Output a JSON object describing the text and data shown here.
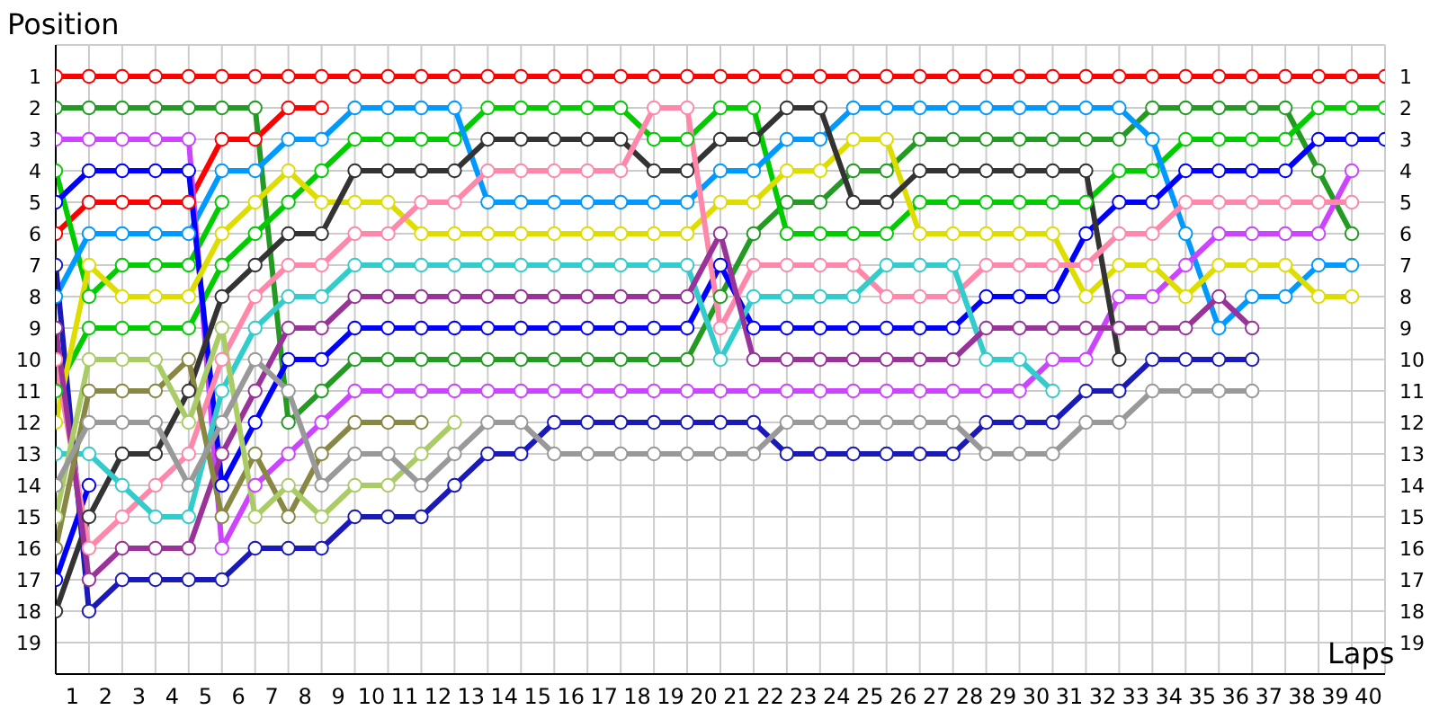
{
  "chart_data": {
    "type": "line",
    "xlabel": "Laps",
    "ylabel": "Position",
    "marker": "circle",
    "grid": true,
    "x": [
      0,
      1,
      2,
      3,
      4,
      5,
      6,
      7,
      8,
      9,
      10,
      11,
      12,
      13,
      14,
      15,
      16,
      17,
      18,
      19,
      20,
      21,
      22,
      23,
      24,
      25,
      26,
      27,
      28,
      29,
      30,
      31,
      32,
      33,
      34,
      35,
      36,
      37,
      38,
      39,
      40
    ],
    "xlim": [
      0,
      40
    ],
    "xticks": [
      {
        "value": 0.5,
        "label": "1"
      },
      {
        "value": 1.5,
        "label": "2"
      },
      {
        "value": 2.5,
        "label": "3"
      },
      {
        "value": 3.5,
        "label": "4"
      },
      {
        "value": 4.5,
        "label": "5"
      },
      {
        "value": 5.5,
        "label": "6"
      },
      {
        "value": 6.5,
        "label": "7"
      },
      {
        "value": 7.5,
        "label": "8"
      },
      {
        "value": 8.5,
        "label": "9"
      },
      {
        "value": 9.5,
        "label": "10"
      },
      {
        "value": 10.5,
        "label": "11"
      },
      {
        "value": 11.5,
        "label": "12"
      },
      {
        "value": 12.5,
        "label": "13"
      },
      {
        "value": 13.5,
        "label": "14"
      },
      {
        "value": 14.5,
        "label": "15"
      },
      {
        "value": 15.5,
        "label": "16"
      },
      {
        "value": 16.5,
        "label": "17"
      },
      {
        "value": 17.5,
        "label": "18"
      },
      {
        "value": 18.5,
        "label": "19"
      },
      {
        "value": 19.5,
        "label": "20"
      },
      {
        "value": 20.5,
        "label": "21"
      },
      {
        "value": 21.5,
        "label": "22"
      },
      {
        "value": 22.5,
        "label": "23"
      },
      {
        "value": 23.5,
        "label": "24"
      },
      {
        "value": 24.5,
        "label": "25"
      },
      {
        "value": 25.5,
        "label": "26"
      },
      {
        "value": 26.5,
        "label": "27"
      },
      {
        "value": 27.5,
        "label": "28"
      },
      {
        "value": 28.5,
        "label": "29"
      },
      {
        "value": 29.5,
        "label": "30"
      },
      {
        "value": 30.5,
        "label": "31"
      },
      {
        "value": 31.5,
        "label": "32"
      },
      {
        "value": 32.5,
        "label": "33"
      },
      {
        "value": 33.5,
        "label": "34"
      },
      {
        "value": 34.5,
        "label": "35"
      },
      {
        "value": 35.5,
        "label": "36"
      },
      {
        "value": 36.5,
        "label": "37"
      },
      {
        "value": 37.5,
        "label": "38"
      },
      {
        "value": 38.5,
        "label": "39"
      },
      {
        "value": 39.5,
        "label": "40"
      }
    ],
    "ylim": [
      20,
      0
    ],
    "yticks": [
      1,
      2,
      3,
      4,
      5,
      6,
      7,
      8,
      9,
      10,
      11,
      12,
      13,
      14,
      15,
      16,
      17,
      18,
      19
    ],
    "y2lim": [
      20,
      0
    ],
    "y2ticks": [
      1,
      2,
      3,
      4,
      5,
      6,
      7,
      8,
      9,
      10,
      11,
      12,
      13,
      14,
      15,
      16,
      17,
      18,
      19
    ],
    "series": [
      {
        "color": "#ff0000",
        "values": [
          1,
          1,
          1,
          1,
          1,
          1,
          1,
          1,
          1,
          1,
          1,
          1,
          1,
          1,
          1,
          1,
          1,
          1,
          1,
          1,
          1,
          1,
          1,
          1,
          1,
          1,
          1,
          1,
          1,
          1,
          1,
          1,
          1,
          1,
          1,
          1,
          1,
          1,
          1,
          1,
          1
        ]
      },
      {
        "color": "#ff0000",
        "values": [
          6,
          5,
          5,
          5,
          5,
          3,
          3,
          2,
          2,
          null,
          null,
          null,
          null,
          null,
          null,
          null,
          null,
          null,
          null,
          null,
          null,
          null,
          null,
          null,
          null,
          null,
          null,
          null,
          null,
          null,
          null,
          null,
          null,
          null,
          null,
          null,
          null,
          null,
          null,
          null,
          null
        ]
      },
      {
        "color": "#239b23",
        "values": [
          2,
          2,
          2,
          2,
          2,
          2,
          2,
          12,
          11,
          10,
          10,
          10,
          10,
          10,
          10,
          10,
          10,
          10,
          10,
          10,
          8,
          6,
          5,
          5,
          4,
          4,
          3,
          3,
          3,
          3,
          3,
          3,
          3,
          2,
          2,
          2,
          2,
          2,
          4,
          6,
          null
        ]
      },
      {
        "color": "#00cc00",
        "values": [
          4,
          8,
          7,
          7,
          7,
          5,
          null,
          null,
          null,
          null,
          null,
          null,
          null,
          null,
          null,
          null,
          null,
          null,
          null,
          null,
          null,
          null,
          null,
          null,
          null,
          null,
          null,
          null,
          null,
          null,
          null,
          null,
          null,
          null,
          null,
          null,
          null,
          null,
          null,
          null,
          null
        ]
      },
      {
        "color": "#00cc00",
        "values": [
          11,
          9,
          9,
          9,
          9,
          7,
          6,
          5,
          4,
          3,
          3,
          3,
          3,
          2,
          2,
          2,
          2,
          2,
          3,
          3,
          2,
          2,
          6,
          6,
          6,
          6,
          5,
          5,
          5,
          5,
          5,
          5,
          4,
          4,
          3,
          3,
          3,
          3,
          2,
          2,
          2
        ]
      },
      {
        "color": "#0099ff",
        "values": [
          8,
          6,
          6,
          6,
          6,
          4,
          4,
          3,
          3,
          2,
          2,
          2,
          2,
          5,
          5,
          5,
          5,
          5,
          5,
          5,
          4,
          4,
          3,
          3,
          2,
          2,
          2,
          2,
          2,
          2,
          2,
          2,
          2,
          3,
          6,
          9,
          8,
          8,
          7,
          7,
          null
        ]
      },
      {
        "color": "#cc44ff",
        "values": [
          3,
          3,
          3,
          3,
          3,
          16,
          14,
          13,
          12,
          11,
          11,
          11,
          11,
          11,
          11,
          11,
          11,
          11,
          11,
          11,
          11,
          11,
          11,
          11,
          11,
          11,
          11,
          11,
          11,
          11,
          10,
          10,
          8,
          8,
          7,
          6,
          6,
          6,
          6,
          4,
          null
        ]
      },
      {
        "color": "#0000ff",
        "values": [
          5,
          4,
          4,
          4,
          4,
          14,
          12,
          10,
          10,
          9,
          9,
          9,
          9,
          9,
          9,
          9,
          9,
          9,
          9,
          9,
          7,
          9,
          9,
          9,
          9,
          9,
          9,
          9,
          8,
          8,
          8,
          6,
          5,
          5,
          4,
          4,
          4,
          4,
          3,
          3,
          3
        ]
      },
      {
        "color": "#1a1ab8",
        "values": [
          7,
          18,
          17,
          17,
          17,
          17,
          16,
          16,
          16,
          15,
          15,
          15,
          14,
          13,
          13,
          12,
          12,
          12,
          12,
          12,
          12,
          12,
          13,
          13,
          13,
          13,
          13,
          13,
          12,
          12,
          12,
          11,
          11,
          10,
          10,
          10,
          10,
          null,
          null,
          null,
          null
        ]
      },
      {
        "color": "#0000ff",
        "values": [
          17,
          14,
          null,
          null,
          null,
          null,
          null,
          null,
          null,
          null,
          null,
          null,
          null,
          null,
          null,
          null,
          null,
          null,
          null,
          null,
          null,
          null,
          null,
          null,
          null,
          null,
          null,
          null,
          null,
          null,
          null,
          null,
          null,
          null,
          null,
          null,
          null,
          null,
          null,
          null,
          null
        ]
      },
      {
        "color": "#dddd00",
        "values": [
          12,
          7,
          8,
          8,
          8,
          6,
          5,
          4,
          5,
          5,
          5,
          6,
          6,
          6,
          6,
          6,
          6,
          6,
          6,
          6,
          5,
          5,
          4,
          4,
          3,
          3,
          6,
          6,
          6,
          6,
          6,
          8,
          7,
          7,
          8,
          7,
          7,
          7,
          8,
          8,
          null
        ]
      },
      {
        "color": "#333333",
        "values": [
          18,
          15,
          13,
          13,
          11,
          8,
          7,
          6,
          6,
          4,
          4,
          4,
          4,
          3,
          3,
          3,
          3,
          3,
          4,
          4,
          3,
          3,
          2,
          2,
          5,
          5,
          4,
          4,
          4,
          4,
          4,
          4,
          10,
          null,
          null,
          null,
          null,
          null,
          null,
          null,
          null
        ]
      },
      {
        "color": "#ff88aa",
        "values": [
          10,
          16,
          15,
          14,
          13,
          10,
          8,
          7,
          7,
          6,
          6,
          5,
          5,
          4,
          4,
          4,
          4,
          4,
          2,
          2,
          9,
          7,
          7,
          7,
          7,
          8,
          8,
          8,
          7,
          7,
          7,
          7,
          6,
          6,
          5,
          5,
          5,
          5,
          5,
          5,
          null
        ]
      },
      {
        "color": "#33cccc",
        "values": [
          13,
          13,
          14,
          15,
          15,
          11,
          9,
          8,
          8,
          7,
          7,
          7,
          7,
          7,
          7,
          7,
          7,
          7,
          7,
          7,
          10,
          8,
          8,
          8,
          8,
          7,
          7,
          7,
          10,
          10,
          11,
          null,
          null,
          null,
          null,
          null,
          null,
          null,
          null,
          null,
          null
        ]
      },
      {
        "color": "#993399",
        "values": [
          9,
          17,
          16,
          16,
          16,
          13,
          11,
          9,
          9,
          8,
          8,
          8,
          8,
          8,
          8,
          8,
          8,
          8,
          8,
          8,
          6,
          10,
          10,
          10,
          10,
          10,
          10,
          10,
          9,
          9,
          9,
          9,
          9,
          9,
          9,
          8,
          9,
          null,
          null,
          null,
          null
        ]
      },
      {
        "color": "#888844",
        "values": [
          16,
          11,
          11,
          11,
          10,
          15,
          13,
          15,
          13,
          12,
          12,
          12,
          null,
          null,
          null,
          null,
          null,
          null,
          null,
          null,
          null,
          null,
          null,
          null,
          null,
          null,
          null,
          null,
          null,
          null,
          null,
          null,
          null,
          null,
          null,
          null,
          null,
          null,
          null,
          null,
          null
        ]
      },
      {
        "color": "#aacc66",
        "values": [
          15,
          10,
          10,
          10,
          12,
          9,
          15,
          14,
          15,
          14,
          14,
          13,
          12,
          null,
          null,
          null,
          null,
          null,
          null,
          null,
          null,
          null,
          null,
          null,
          null,
          null,
          null,
          null,
          null,
          null,
          null,
          null,
          null,
          null,
          null,
          null,
          null,
          null,
          null,
          null,
          null
        ]
      },
      {
        "color": "#999999",
        "values": [
          14,
          12,
          12,
          12,
          14,
          12,
          10,
          11,
          14,
          13,
          13,
          14,
          13,
          12,
          12,
          13,
          13,
          13,
          13,
          13,
          13,
          13,
          12,
          12,
          12,
          12,
          12,
          12,
          13,
          13,
          13,
          12,
          12,
          11,
          11,
          11,
          11,
          null,
          null,
          null,
          null
        ]
      }
    ]
  }
}
